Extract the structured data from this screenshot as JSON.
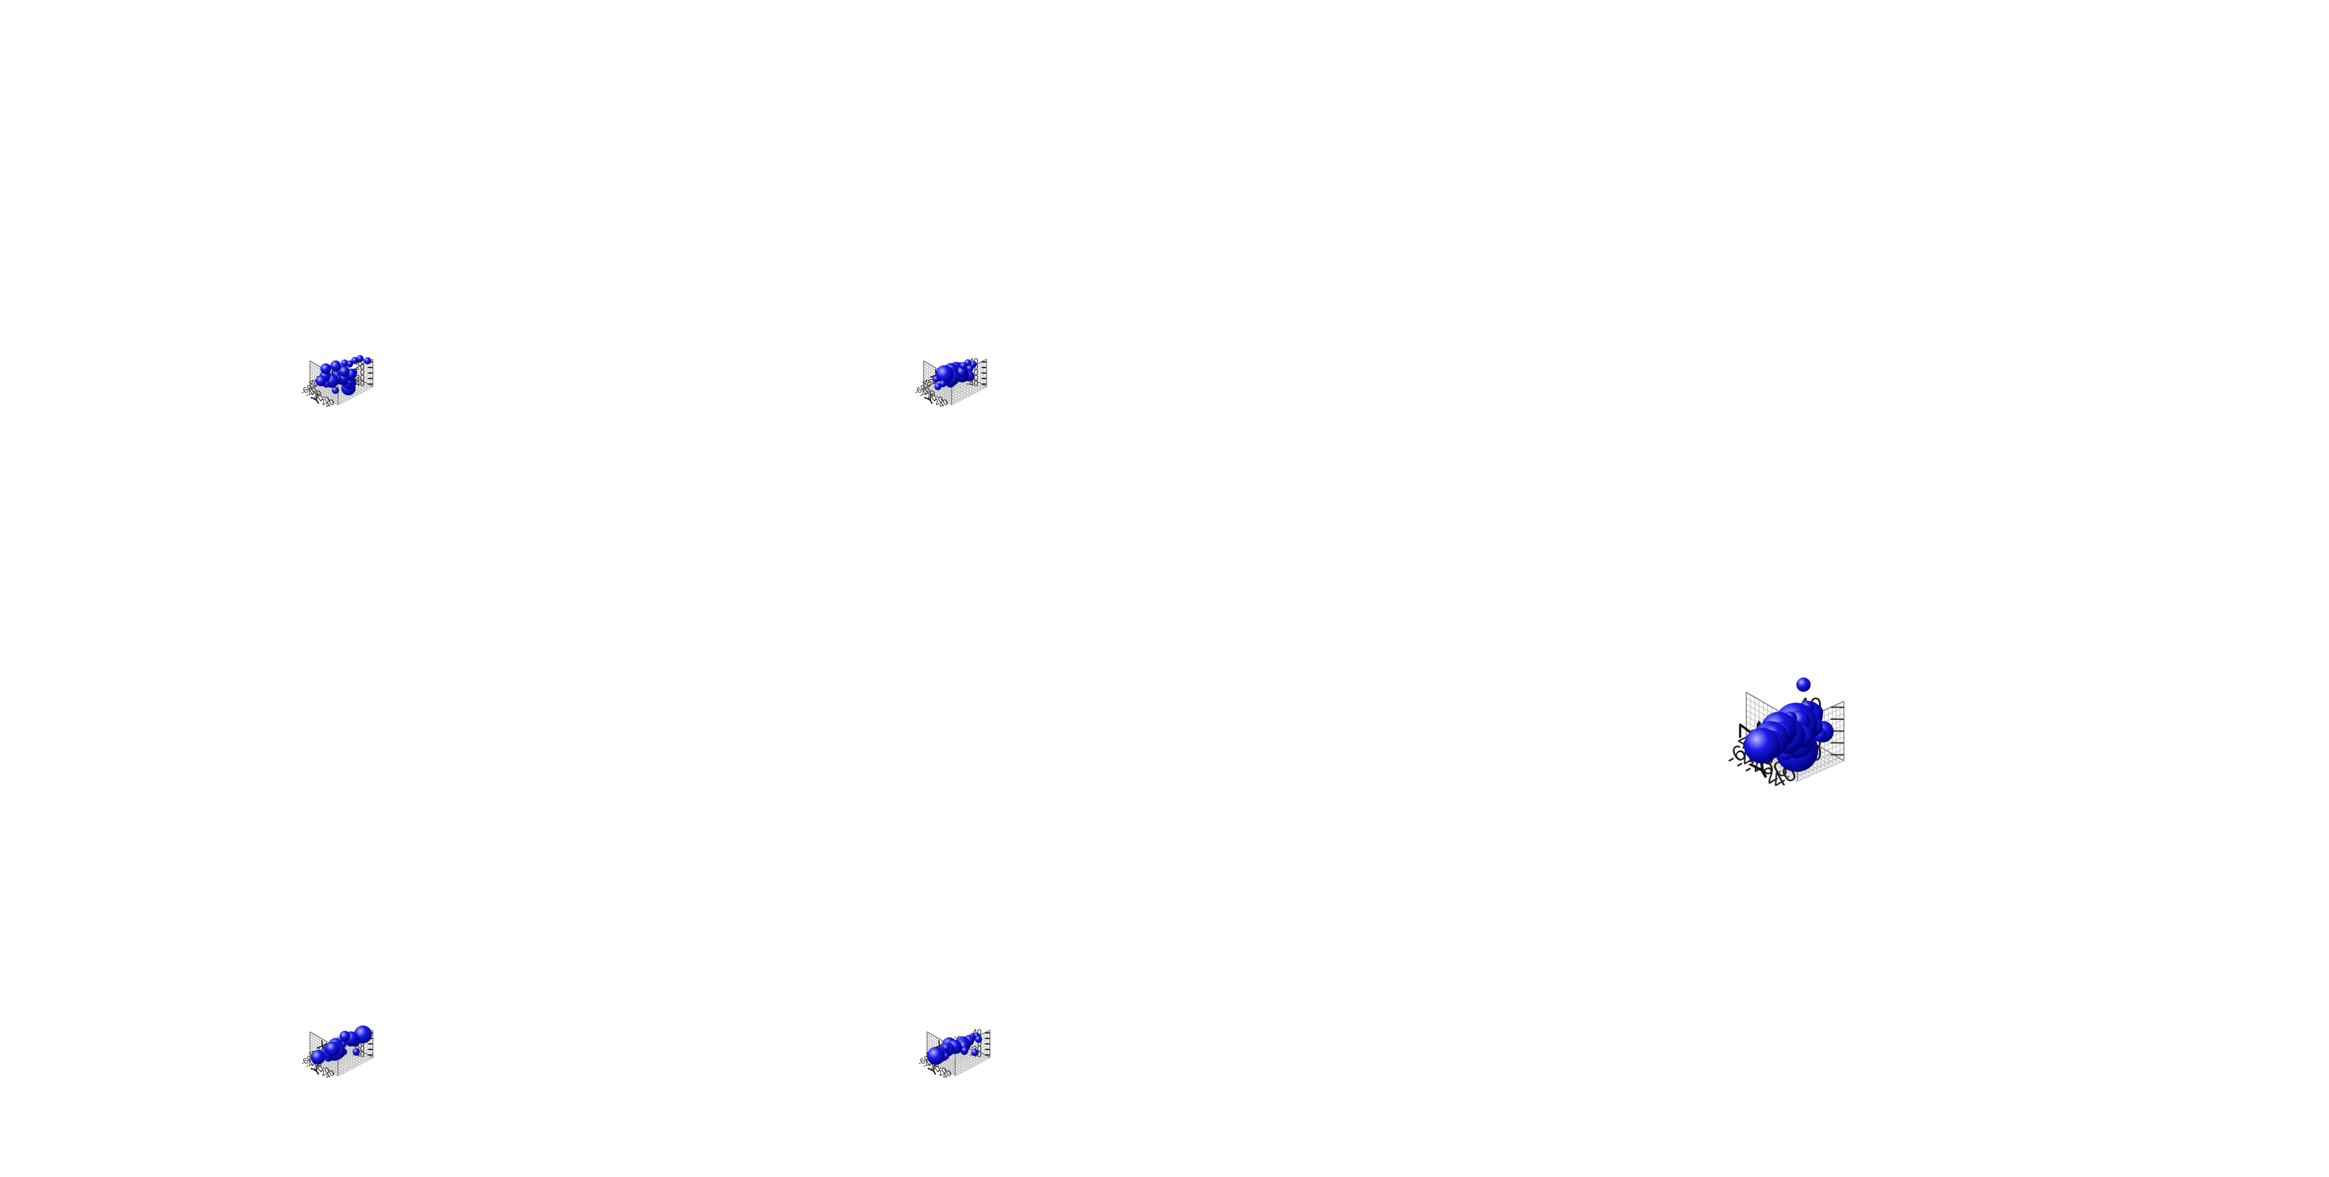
{
  "colors": {
    "marker": "#1a1ae6",
    "marker_highlight": "#b9b9ff",
    "marker_shadow": "#00007a"
  },
  "chart_data": [
    {
      "type": "scatter",
      "xlabel": "X",
      "ylabel": "Y",
      "zlabel": "Z",
      "x_ticks": [
        "-60",
        "-40",
        "-20",
        "0",
        "20",
        "40"
      ],
      "y_ticks": [
        "-60",
        "-40",
        "-20",
        "0",
        "20",
        "40"
      ],
      "z_ticks": [
        "-40",
        "-20",
        "0",
        "20",
        "40"
      ],
      "xlim": [
        -60,
        60
      ],
      "ylim": [
        -60,
        60
      ],
      "zlim": [
        -50,
        50
      ],
      "points": [
        {
          "x": -50,
          "y": -20,
          "z": -38,
          "s": 3
        },
        {
          "x": -40,
          "y": -10,
          "z": -41,
          "s": 2
        },
        {
          "x": -30,
          "y": 0,
          "z": -44,
          "s": 2
        },
        {
          "x": -20,
          "y": 10,
          "z": -24,
          "s": 3
        },
        {
          "x": -10,
          "y": 20,
          "z": -26,
          "s": 4
        },
        {
          "x": 0,
          "y": 30,
          "z": -37,
          "s": 4
        },
        {
          "x": 10,
          "y": -30,
          "z": -34,
          "s": 4
        },
        {
          "x": 20,
          "y": -40,
          "z": -46,
          "s": 2
        },
        {
          "x": 30,
          "y": -50,
          "z": -34,
          "s": 3
        },
        {
          "x": -10,
          "y": 0,
          "z": 3,
          "s": 3
        },
        {
          "x": 0,
          "y": 10,
          "z": -10,
          "s": 3
        },
        {
          "x": 10,
          "y": 20,
          "z": 9,
          "s": 4
        },
        {
          "x": 20,
          "y": 30,
          "z": 18,
          "s": 5
        },
        {
          "x": 30,
          "y": 40,
          "z": 32,
          "s": 5
        },
        {
          "x": 40,
          "y": 50,
          "z": 38,
          "s": 4
        },
        {
          "x": -40,
          "y": 30,
          "z": 48,
          "s": 2
        },
        {
          "x": -30,
          "y": 20,
          "z": 42,
          "s": 2
        },
        {
          "x": -20,
          "y": 10,
          "z": 30,
          "s": 2
        },
        {
          "x": -10,
          "y": 40,
          "z": 20,
          "s": 2
        },
        {
          "x": 0,
          "y": -20,
          "z": -15,
          "s": 2
        },
        {
          "x": 10,
          "y": -10,
          "z": -2,
          "s": 2
        },
        {
          "x": 20,
          "y": 0,
          "z": 40,
          "s": 3
        },
        {
          "x": 30,
          "y": -30,
          "z": 20,
          "s": 3
        },
        {
          "x": 40,
          "y": -20,
          "z": 5,
          "s": 3
        },
        {
          "x": -50,
          "y": 50,
          "z": 45,
          "s": 2
        },
        {
          "x": -20,
          "y": -40,
          "z": -48,
          "s": 2
        },
        {
          "x": 50,
          "y": -10,
          "z": 10,
          "s": 3
        },
        {
          "x": 45,
          "y": 30,
          "z": -20,
          "s": 2
        },
        {
          "x": 15,
          "y": 50,
          "z": -5,
          "s": 2
        },
        {
          "x": -35,
          "y": -30,
          "z": 5,
          "s": 2
        }
      ]
    },
    {
      "type": "scatter",
      "xlabel": "X",
      "ylabel": "Y",
      "zlabel": "Z",
      "x_ticks": [
        "-60",
        "-40",
        "-20",
        "0",
        "20",
        "40"
      ],
      "y_ticks": [
        "-60",
        "-40",
        "-20",
        "0",
        "20",
        "40"
      ],
      "z_ticks": [
        "-40",
        "-20",
        "0",
        "20",
        "40"
      ],
      "xlim": [
        -60,
        60
      ],
      "ylim": [
        -60,
        60
      ],
      "zlim": [
        -50,
        50
      ],
      "points": [
        {
          "x": -40,
          "y": 10,
          "z": -25,
          "s": 3
        },
        {
          "x": -30,
          "y": -10,
          "z": -15,
          "s": 3
        },
        {
          "x": -20,
          "y": 0,
          "z": -14,
          "s": 4
        },
        {
          "x": -10,
          "y": -30,
          "z": -32,
          "s": 5
        },
        {
          "x": 0,
          "y": -20,
          "z": -40,
          "s": 3
        },
        {
          "x": 10,
          "y": -40,
          "z": -50,
          "s": 2
        },
        {
          "x": -10,
          "y": 20,
          "z": -2,
          "s": 2
        },
        {
          "x": 0,
          "y": 30,
          "z": 10,
          "s": 4
        },
        {
          "x": 10,
          "y": 40,
          "z": 28,
          "s": 4
        },
        {
          "x": 20,
          "y": -20,
          "z": 0,
          "s": 5
        },
        {
          "x": 30,
          "y": 20,
          "z": 40,
          "s": 4
        },
        {
          "x": 40,
          "y": 30,
          "z": 18,
          "s": 4
        },
        {
          "x": 45,
          "y": 40,
          "z": 25,
          "s": 3
        },
        {
          "x": -30,
          "y": 40,
          "z": 38,
          "s": 2
        },
        {
          "x": -20,
          "y": 30,
          "z": 44,
          "s": 2
        },
        {
          "x": -10,
          "y": 10,
          "z": 22,
          "s": 3
        },
        {
          "x": 0,
          "y": -10,
          "z": 5,
          "s": 2
        },
        {
          "x": 10,
          "y": 0,
          "z": -20,
          "s": 2
        },
        {
          "x": 20,
          "y": 50,
          "z": 50,
          "s": 3
        },
        {
          "x": -45,
          "y": -20,
          "z": -5,
          "s": 2
        },
        {
          "x": -35,
          "y": 20,
          "z": 10,
          "s": 2
        },
        {
          "x": 25,
          "y": -50,
          "z": -30,
          "s": 2
        },
        {
          "x": 35,
          "y": -30,
          "z": -42,
          "s": 2
        },
        {
          "x": 5,
          "y": 10,
          "z": 32,
          "s": 3
        }
      ]
    },
    {
      "type": "scatter",
      "xlabel": "X",
      "ylabel": "Y",
      "zlabel": "Z",
      "x_ticks": [
        "-60",
        "-40",
        "-20",
        "0",
        "20",
        "40"
      ],
      "y_ticks": [
        "-60",
        "-40",
        "-20",
        "0",
        "20",
        "40"
      ],
      "z_ticks": [
        "-40",
        "-20",
        "0",
        "20",
        "40"
      ],
      "xlim": [
        -60,
        60
      ],
      "ylim": [
        -60,
        60
      ],
      "zlim": [
        -50,
        50
      ],
      "points": [
        {
          "x": -50,
          "y": 30,
          "z": 25,
          "s": 5
        },
        {
          "x": -50,
          "y": -20,
          "z": -15,
          "s": 4
        },
        {
          "x": -55,
          "y": -10,
          "z": -22,
          "s": 3
        },
        {
          "x": -40,
          "y": 40,
          "z": 45,
          "s": 2
        },
        {
          "x": -30,
          "y": 0,
          "z": -10,
          "s": 2
        },
        {
          "x": -20,
          "y": 10,
          "z": 5,
          "s": 2
        },
        {
          "x": -10,
          "y": 20,
          "z": 30,
          "s": 3
        },
        {
          "x": 0,
          "y": 30,
          "z": 40,
          "s": 2
        },
        {
          "x": 10,
          "y": -10,
          "z": -22,
          "s": 5
        },
        {
          "x": 20,
          "y": 0,
          "z": 10,
          "s": 4
        },
        {
          "x": 30,
          "y": 10,
          "z": 2,
          "s": 4
        },
        {
          "x": 40,
          "y": 20,
          "z": 0,
          "s": 4
        },
        {
          "x": 20,
          "y": -30,
          "z": -35,
          "s": 3
        },
        {
          "x": 10,
          "y": -40,
          "z": -30,
          "s": 3
        },
        {
          "x": -10,
          "y": -50,
          "z": -45,
          "s": 4
        },
        {
          "x": 30,
          "y": -20,
          "z": -42,
          "s": 2
        },
        {
          "x": 45,
          "y": -10,
          "z": -10,
          "s": 3
        },
        {
          "x": 50,
          "y": 10,
          "z": -15,
          "s": 2
        },
        {
          "x": 40,
          "y": -50,
          "z": -48,
          "s": 4
        },
        {
          "x": -20,
          "y": -10,
          "z": 15,
          "s": 3
        },
        {
          "x": 5,
          "y": 35,
          "z": 38,
          "s": 2
        },
        {
          "x": 15,
          "y": 25,
          "z": 22,
          "s": 2
        },
        {
          "x": 25,
          "y": 40,
          "z": 8,
          "s": 2
        },
        {
          "x": -35,
          "y": 20,
          "z": -35,
          "s": 2
        }
      ]
    },
    {
      "type": "scatter",
      "xlabel": "X",
      "ylabel": "Y",
      "zlabel": "Z",
      "x_ticks": [
        "-60",
        "-40",
        "-20",
        "0",
        "20",
        "40"
      ],
      "y_ticks": [
        "-60",
        "-40",
        "-20",
        "0",
        "20",
        "40"
      ],
      "z_ticks": [
        "-40",
        "-20",
        "0",
        "20",
        "40"
      ],
      "xlim": [
        -60,
        60
      ],
      "ylim": [
        -60,
        60
      ],
      "zlim": [
        -50,
        50
      ],
      "points": [
        {
          "x": -40,
          "y": 20,
          "z": -40,
          "s": 2
        },
        {
          "x": -30,
          "y": -10,
          "z": -42,
          "s": 2
        },
        {
          "x": -20,
          "y": 0,
          "z": -35,
          "s": 2
        },
        {
          "x": -10,
          "y": -30,
          "z": -28,
          "s": 4
        },
        {
          "x": 0,
          "y": -20,
          "z": -30,
          "s": 2
        },
        {
          "x": 10,
          "y": -40,
          "z": -25,
          "s": 2
        },
        {
          "x": -10,
          "y": 10,
          "z": -5,
          "s": 3
        },
        {
          "x": 0,
          "y": 20,
          "z": 8,
          "s": 4
        },
        {
          "x": 10,
          "y": 30,
          "z": 25,
          "s": 4
        },
        {
          "x": 20,
          "y": 40,
          "z": 38,
          "s": 3
        },
        {
          "x": 30,
          "y": 20,
          "z": 18,
          "s": 3
        },
        {
          "x": 40,
          "y": 10,
          "z": 28,
          "s": 4
        },
        {
          "x": 30,
          "y": -10,
          "z": -5,
          "s": 4
        },
        {
          "x": 40,
          "y": -20,
          "z": -22,
          "s": 4
        },
        {
          "x": 45,
          "y": -40,
          "z": -35,
          "s": 5
        },
        {
          "x": -45,
          "y": 30,
          "z": 10,
          "s": 2
        },
        {
          "x": -30,
          "y": 40,
          "z": 35,
          "s": 2
        },
        {
          "x": -20,
          "y": 20,
          "z": 15,
          "s": 3
        },
        {
          "x": 0,
          "y": 0,
          "z": -10,
          "s": 2
        },
        {
          "x": 20,
          "y": -30,
          "z": -45,
          "s": 2
        },
        {
          "x": 50,
          "y": 30,
          "z": 45,
          "s": 2
        },
        {
          "x": 15,
          "y": 10,
          "z": 0,
          "s": 3
        },
        {
          "x": 25,
          "y": 0,
          "z": 5,
          "s": 2
        },
        {
          "x": -15,
          "y": 40,
          "z": 40,
          "s": 2
        }
      ]
    },
    {
      "type": "scatter",
      "xlabel": "X",
      "ylabel": "Y",
      "zlabel": "Z",
      "x_ticks": [
        "-60",
        "-40",
        "-20",
        "0",
        "20",
        "40"
      ],
      "y_ticks": [
        "-60",
        "-40",
        "-20",
        "0",
        "20",
        "40"
      ],
      "z_ticks": [
        "-40",
        "-20",
        "0",
        "20",
        "40"
      ],
      "xlim": [
        -60,
        60
      ],
      "ylim": [
        -60,
        60
      ],
      "zlim": [
        -50,
        50
      ],
      "points": [
        {
          "x": -55,
          "y": -30,
          "z": 42,
          "s": 2
        },
        {
          "x": -50,
          "y": 20,
          "z": -15,
          "s": 3
        },
        {
          "x": -55,
          "y": -10,
          "z": -20,
          "s": 3
        },
        {
          "x": -30,
          "y": 30,
          "z": -10,
          "s": 2
        },
        {
          "x": -20,
          "y": 10,
          "z": 30,
          "s": 2
        },
        {
          "x": -10,
          "y": 40,
          "z": 38,
          "s": 2
        },
        {
          "x": -10,
          "y": -40,
          "z": -30,
          "s": 3
        },
        {
          "x": 0,
          "y": -20,
          "z": -25,
          "s": 3
        },
        {
          "x": 10,
          "y": -10,
          "z": -8,
          "s": 3
        },
        {
          "x": 10,
          "y": 10,
          "z": 5,
          "s": 2
        },
        {
          "x": 20,
          "y": 20,
          "z": 18,
          "s": 6
        },
        {
          "x": 20,
          "y": -20,
          "z": -8,
          "s": 5
        },
        {
          "x": 30,
          "y": 30,
          "z": -2,
          "s": 5
        },
        {
          "x": 30,
          "y": -30,
          "z": -25,
          "s": 5
        },
        {
          "x": 40,
          "y": 40,
          "z": -12,
          "s": 6
        },
        {
          "x": 40,
          "y": 0,
          "z": -14,
          "s": 2
        },
        {
          "x": 50,
          "y": 10,
          "z": -6,
          "s": 2
        },
        {
          "x": 45,
          "y": -45,
          "z": -32,
          "s": 2
        },
        {
          "x": 0,
          "y": -50,
          "z": -40,
          "s": 4
        },
        {
          "x": 15,
          "y": -45,
          "z": -45,
          "s": 4
        },
        {
          "x": 25,
          "y": -55,
          "z": -48,
          "s": 5
        },
        {
          "x": -20,
          "y": -30,
          "z": -5,
          "s": 2
        },
        {
          "x": 5,
          "y": 30,
          "z": 45,
          "s": 2
        },
        {
          "x": 15,
          "y": 45,
          "z": 42,
          "s": 4
        },
        {
          "x": 35,
          "y": 50,
          "z": 40,
          "s": 3
        },
        {
          "x": -5,
          "y": 5,
          "z": 10,
          "s": 3
        },
        {
          "x": 0,
          "y": 15,
          "z": -5,
          "s": 4
        },
        {
          "x": 10,
          "y": 0,
          "z": -12,
          "s": 4
        },
        {
          "x": -15,
          "y": -15,
          "z": -15,
          "s": 2
        },
        {
          "x": 20,
          "y": -5,
          "z": -25,
          "s": 2
        },
        {
          "x": 25,
          "y": -35,
          "z": -35,
          "s": 2
        },
        {
          "x": 35,
          "y": 10,
          "z": -30,
          "s": 2
        },
        {
          "x": 40,
          "y": -15,
          "z": -36,
          "s": 2
        },
        {
          "x": -30,
          "y": 0,
          "z": -32,
          "s": 2
        },
        {
          "x": -40,
          "y": -20,
          "z": -36,
          "s": 3
        },
        {
          "x": -5,
          "y": -25,
          "z": -28,
          "s": 5
        }
      ]
    }
  ]
}
